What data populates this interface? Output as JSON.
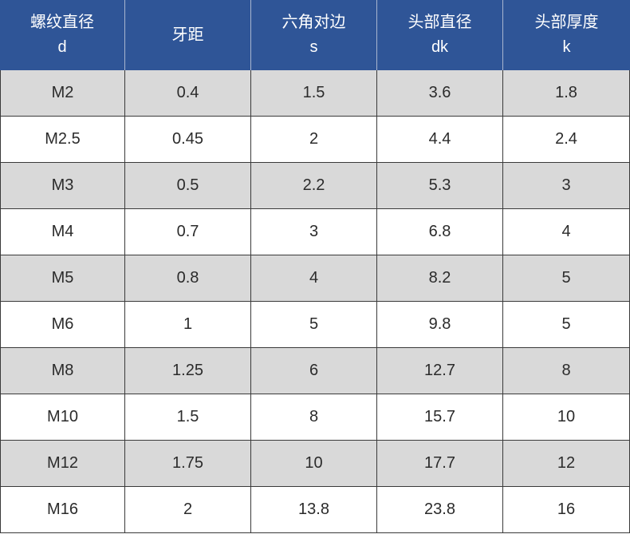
{
  "table": {
    "headers": [
      {
        "label": "螺纹直径",
        "symbol": "d"
      },
      {
        "label": "牙距"
      },
      {
        "label": "六角对边",
        "symbol": "s"
      },
      {
        "label": "头部直径",
        "symbol": "dk"
      },
      {
        "label": "头部厚度",
        "symbol": "k"
      }
    ],
    "rows": [
      [
        "M2",
        "0.4",
        "1.5",
        "3.6",
        "1.8"
      ],
      [
        "M2.5",
        "0.45",
        "2",
        "4.4",
        "2.4"
      ],
      [
        "M3",
        "0.5",
        "2.2",
        "5.3",
        "3"
      ],
      [
        "M4",
        "0.7",
        "3",
        "6.8",
        "4"
      ],
      [
        "M5",
        "0.8",
        "4",
        "8.2",
        "5"
      ],
      [
        "M6",
        "1",
        "5",
        "9.8",
        "5"
      ],
      [
        "M8",
        "1.25",
        "6",
        "12.7",
        "8"
      ],
      [
        "M10",
        "1.5",
        "8",
        "15.7",
        "10"
      ],
      [
        "M12",
        "1.75",
        "10",
        "17.7",
        "12"
      ],
      [
        "M16",
        "2",
        "13.8",
        "23.8",
        "16"
      ]
    ]
  },
  "colors": {
    "header_bg": "#2f5597",
    "header_text": "#ffffff",
    "stripe_bg": "#d9d9d9",
    "row_bg": "#ffffff",
    "cell_text": "#2b2b2b"
  }
}
